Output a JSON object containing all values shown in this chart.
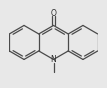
{
  "bg_color": "#e8e8e8",
  "line_color": "#4a4a4a",
  "text_color": "#2a2a2a",
  "linewidth": 0.9,
  "figsize": [
    1.07,
    0.88
  ],
  "dpi": 100
}
